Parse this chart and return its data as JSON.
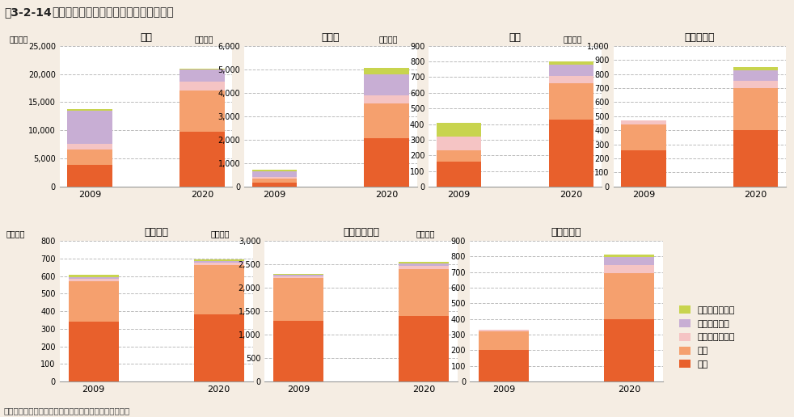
{
  "title_bold": "図3-2-14",
  "title_normal": "　アジアにおける都市ごみ市場規模推計",
  "source": "資料：各国の廃棄物発生量の推計結果により環境省作成",
  "background_color": "#f5ede3",
  "plot_bg": "#ffffff",
  "colors": {
    "収集": "#e8602c",
    "処理": "#f5a06e",
    "堆肥化施設建設": "#f5c4c4",
    "焼却施設建設": "#c8aed4",
    "最終処分場建設": "#c8d44e"
  },
  "charts": [
    {
      "title": "中国",
      "ylabel": "（億円）",
      "ylim": [
        0,
        25000
      ],
      "yticks": [
        0,
        5000,
        10000,
        15000,
        20000,
        25000
      ],
      "years": [
        "2009",
        "2020"
      ],
      "data": {
        "収集": [
          3800,
          9700
        ],
        "処理": [
          2800,
          7400
        ],
        "堆肥化施設建設": [
          1000,
          1600
        ],
        "焼却施設建設": [
          5900,
          2100
        ],
        "最終処分場建設": [
          200,
          200
        ]
      }
    },
    {
      "title": "インド",
      "ylabel": "（億円）",
      "ylim": [
        0,
        6000
      ],
      "yticks": [
        0,
        1000,
        2000,
        3000,
        4000,
        5000,
        6000
      ],
      "years": [
        "2009",
        "2020"
      ],
      "data": {
        "収集": [
          180,
          2050
        ],
        "処理": [
          160,
          1500
        ],
        "堆肥化施設建設": [
          80,
          350
        ],
        "焼却施設建設": [
          220,
          900
        ],
        "最終処分場建設": [
          70,
          250
        ]
      }
    },
    {
      "title": "タイ",
      "ylabel": "（億円）",
      "ylim": [
        0,
        900
      ],
      "yticks": [
        0,
        100,
        200,
        300,
        400,
        500,
        600,
        700,
        800,
        900
      ],
      "years": [
        "2009",
        "2020"
      ],
      "data": {
        "収集": [
          160,
          430
        ],
        "処理": [
          70,
          230
        ],
        "堆肥化施設建設": [
          90,
          50
        ],
        "焼却施設建設": [
          0,
          70
        ],
        "最終処分場建設": [
          90,
          20
        ]
      }
    },
    {
      "title": "マレーシア",
      "ylabel": "（億円）",
      "ylim": [
        0,
        1000
      ],
      "yticks": [
        0,
        100,
        200,
        300,
        400,
        500,
        600,
        700,
        800,
        900,
        1000
      ],
      "years": [
        "2009",
        "2020"
      ],
      "data": {
        "収集": [
          260,
          400
        ],
        "処理": [
          180,
          300
        ],
        "堆肥化施設建設": [
          30,
          50
        ],
        "焼却施設建設": [
          0,
          75
        ],
        "最終処分場建設": [
          0,
          25
        ]
      }
    },
    {
      "title": "ベトナム",
      "ylabel": "（億円）",
      "ylim": [
        0,
        800
      ],
      "yticks": [
        0,
        100,
        200,
        300,
        400,
        500,
        600,
        700,
        800
      ],
      "years": [
        "2009",
        "2020"
      ],
      "data": {
        "収集": [
          340,
          380
        ],
        "処理": [
          230,
          280
        ],
        "堆肥化施設建設": [
          15,
          15
        ],
        "焼却施設建設": [
          10,
          10
        ],
        "最終処分場建設": [
          10,
          10
        ]
      }
    },
    {
      "title": "インドネシア",
      "ylabel": "（億円）",
      "ylim": [
        0,
        3000
      ],
      "yticks": [
        0,
        500,
        1000,
        1500,
        2000,
        2500,
        3000
      ],
      "years": [
        "2009",
        "2020"
      ],
      "data": {
        "収集": [
          1300,
          1400
        ],
        "処理": [
          900,
          1000
        ],
        "堆肥化施設建設": [
          40,
          60
        ],
        "焼却施設建設": [
          40,
          60
        ],
        "最終処分場建設": [
          20,
          30
        ]
      }
    },
    {
      "title": "フィリピン",
      "ylabel": "（億円）",
      "ylim": [
        0,
        900
      ],
      "yticks": [
        0,
        100,
        200,
        300,
        400,
        500,
        600,
        700,
        800,
        900
      ],
      "years": [
        "2009",
        "2020"
      ],
      "data": {
        "収集": [
          200,
          400
        ],
        "処理": [
          120,
          295
        ],
        "堆肥化施設建設": [
          10,
          50
        ],
        "焼却施設建設": [
          0,
          50
        ],
        "最終処分場建設": [
          0,
          15
        ]
      }
    }
  ],
  "legend_labels": [
    "最終処分場建設",
    "焼却施設建設",
    "堆肥化施設建設",
    "処理",
    "収集"
  ],
  "stack_order": [
    "収集",
    "処理",
    "堆肥化施設建設",
    "焼却施設建設",
    "最終処分場建設"
  ]
}
